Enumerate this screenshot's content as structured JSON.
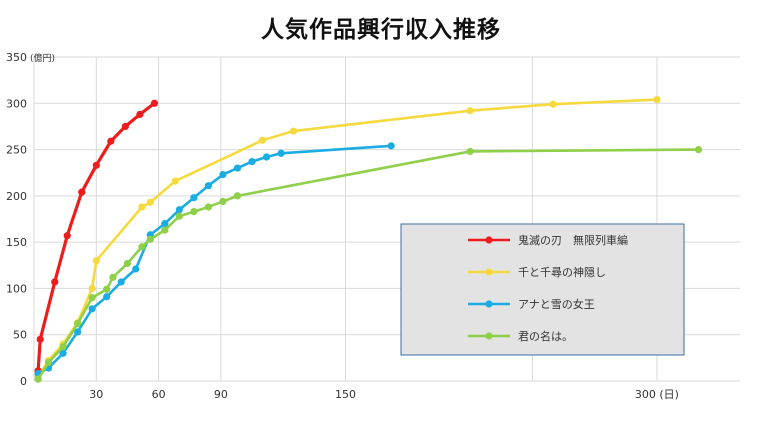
{
  "chart_data": {
    "type": "line",
    "title": "人気作品興行収入推移",
    "ylabel_unit": "(億円)",
    "xlabel_unit": "(日)",
    "ylim": [
      0,
      350
    ],
    "yticks": [
      0,
      50,
      100,
      150,
      200,
      250,
      300,
      350
    ],
    "xlim": [
      0,
      340
    ],
    "xticks": [
      {
        "value": 30,
        "label": "30"
      },
      {
        "value": 60,
        "label": "60"
      },
      {
        "value": 90,
        "label": "90"
      },
      {
        "value": 150,
        "label": "150"
      },
      {
        "value": 300,
        "label": "300 (日)"
      }
    ],
    "grid": true,
    "legend_position": "lower-right",
    "series": [
      {
        "name": "鬼滅の刃　無限列車編",
        "color": "#ee1c1c",
        "points": [
          [
            2,
            11
          ],
          [
            3,
            45
          ],
          [
            10,
            107
          ],
          [
            16,
            157
          ],
          [
            23,
            204
          ],
          [
            30,
            233
          ],
          [
            37,
            259
          ],
          [
            44,
            275
          ],
          [
            51,
            288
          ],
          [
            58,
            300
          ]
        ]
      },
      {
        "name": "千と千尋の神隠し",
        "color": "#f5d93d",
        "points": [
          [
            2,
            5
          ],
          [
            7,
            22
          ],
          [
            14,
            40
          ],
          [
            21,
            63
          ],
          [
            28,
            100
          ],
          [
            30,
            130
          ],
          [
            52,
            188
          ],
          [
            56,
            193
          ],
          [
            68,
            216
          ],
          [
            110,
            260
          ],
          [
            125,
            270
          ],
          [
            210,
            292
          ],
          [
            250,
            299
          ],
          [
            300,
            304
          ]
        ]
      },
      {
        "name": "アナと雪の女王",
        "color": "#1aace3",
        "points": [
          [
            2,
            8
          ],
          [
            7,
            14
          ],
          [
            14,
            30
          ],
          [
            21,
            53
          ],
          [
            28,
            78
          ],
          [
            35,
            91
          ],
          [
            42,
            107
          ],
          [
            49,
            121
          ],
          [
            56,
            158
          ],
          [
            63,
            170
          ],
          [
            70,
            185
          ],
          [
            77,
            198
          ],
          [
            84,
            211
          ],
          [
            91,
            223
          ],
          [
            98,
            230
          ],
          [
            105,
            237
          ],
          [
            112,
            242
          ],
          [
            119,
            246
          ],
          [
            172,
            254
          ]
        ]
      },
      {
        "name": "君の名は。",
        "color": "#8fcf4a",
        "points": [
          [
            2,
            2
          ],
          [
            7,
            20
          ],
          [
            14,
            37
          ],
          [
            21,
            62
          ],
          [
            28,
            90
          ],
          [
            35,
            99
          ],
          [
            38,
            112
          ],
          [
            45,
            127
          ],
          [
            52,
            145
          ],
          [
            56,
            153
          ],
          [
            63,
            163
          ],
          [
            70,
            178
          ],
          [
            77,
            183
          ],
          [
            84,
            188
          ],
          [
            91,
            194
          ],
          [
            98,
            200
          ],
          [
            210,
            248
          ],
          [
            320,
            250
          ]
        ]
      }
    ]
  }
}
